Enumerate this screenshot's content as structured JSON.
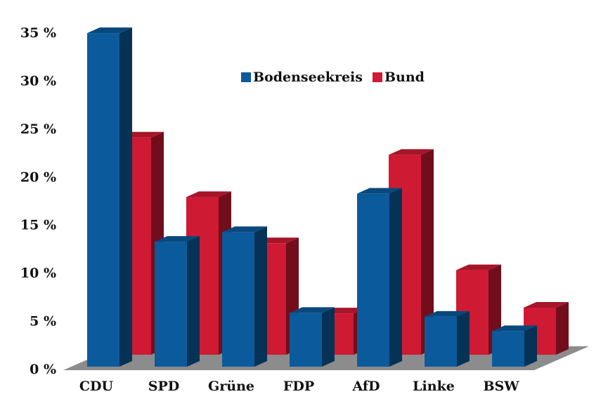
{
  "chart_data": {
    "type": "bar3d",
    "categories": [
      "CDU",
      "SPD",
      "Grüne",
      "FDP",
      "AfD",
      "Linke",
      "BSW"
    ],
    "series": [
      {
        "name": "Bodenseekreis",
        "color": "#0b5a9c",
        "values": [
          34.7,
          13.0,
          14.0,
          5.6,
          18.0,
          5.2,
          3.7
        ]
      },
      {
        "name": "Bund",
        "color": "#cf1a33",
        "values": [
          22.6,
          16.4,
          11.6,
          4.3,
          20.8,
          8.8,
          4.9
        ]
      }
    ],
    "ylim": [
      0,
      35
    ],
    "yticks": [
      {
        "value": 0,
        "label": "0 %"
      },
      {
        "value": 5,
        "label": "5 %"
      },
      {
        "value": 10,
        "label": "10 %"
      },
      {
        "value": 15,
        "label": "15 %"
      },
      {
        "value": 20,
        "label": "20 %"
      },
      {
        "value": 25,
        "label": "25 %"
      },
      {
        "value": 30,
        "label": "30 %"
      },
      {
        "value": 35,
        "label": "35 %"
      }
    ]
  }
}
